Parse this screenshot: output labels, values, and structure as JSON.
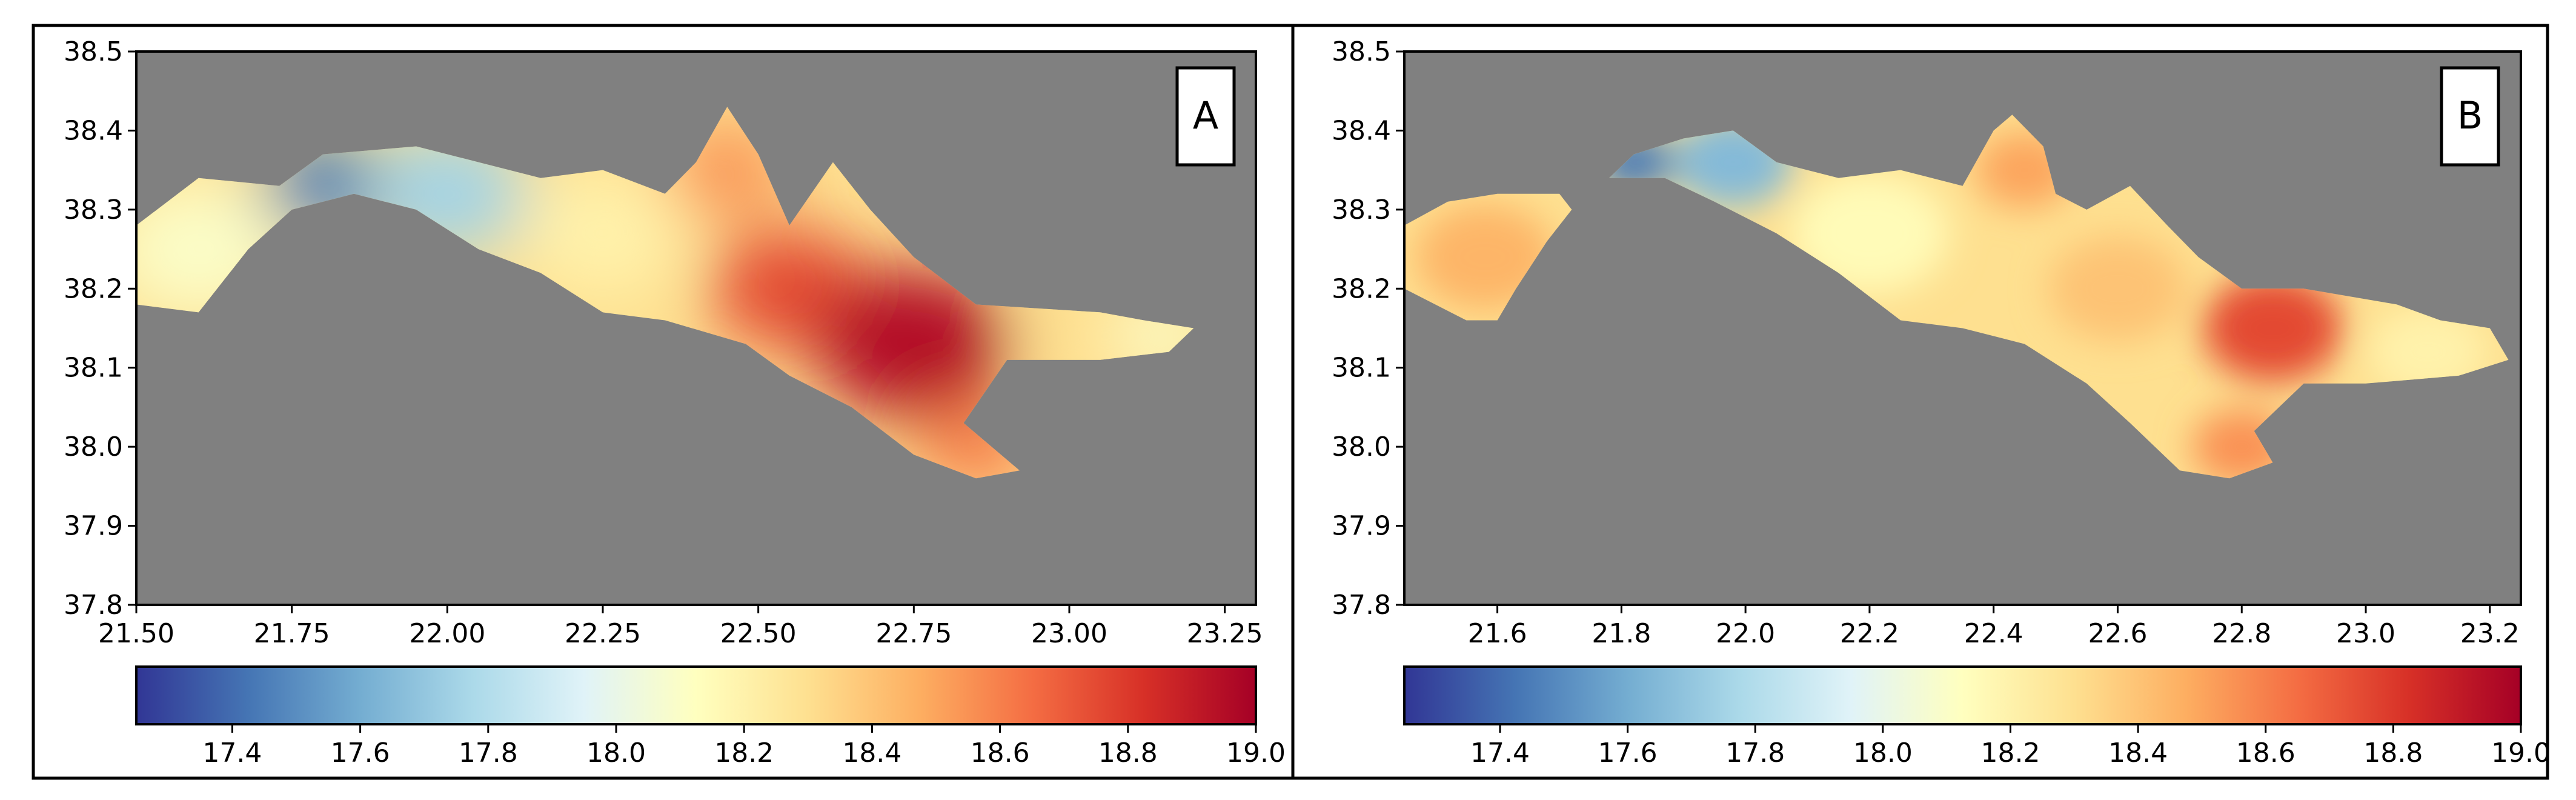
{
  "chart_data": [
    {
      "type": "heatmap",
      "panel_label": "A",
      "title": "",
      "xlabel": "",
      "ylabel": "",
      "xlim": [
        21.5,
        23.3
      ],
      "ylim": [
        37.8,
        38.5
      ],
      "xticks": [
        "21.50",
        "21.75",
        "22.00",
        "22.25",
        "22.50",
        "22.75",
        "23.00",
        "23.25"
      ],
      "xtick_values": [
        21.5,
        21.75,
        22.0,
        22.25,
        22.5,
        22.75,
        23.0,
        23.25
      ],
      "yticks": [
        "38.5",
        "38.4",
        "38.3",
        "38.2",
        "38.1",
        "38.0",
        "37.9",
        "37.8"
      ],
      "ytick_values": [
        38.5,
        38.4,
        38.3,
        38.2,
        38.1,
        38.0,
        37.9,
        37.8
      ],
      "background_color": "#808080",
      "colorbar": {
        "vmin": 17.25,
        "vmax": 19.0,
        "ticks": [
          "17.4",
          "17.6",
          "17.8",
          "18.0",
          "18.2",
          "18.4",
          "18.6",
          "18.8",
          "19.0"
        ],
        "tick_values": [
          17.4,
          17.6,
          17.8,
          18.0,
          18.2,
          18.4,
          18.6,
          18.8,
          19.0
        ],
        "colormap": "RdYlBu_r"
      },
      "region_outline": [
        [
          21.5,
          38.18
        ],
        [
          21.5,
          38.28
        ],
        [
          21.6,
          38.34
        ],
        [
          21.73,
          38.33
        ],
        [
          21.8,
          38.37
        ],
        [
          21.95,
          38.38
        ],
        [
          22.05,
          38.36
        ],
        [
          22.15,
          38.34
        ],
        [
          22.25,
          38.35
        ],
        [
          22.35,
          38.32
        ],
        [
          22.4,
          38.36
        ],
        [
          22.45,
          38.43
        ],
        [
          22.5,
          38.37
        ],
        [
          22.55,
          38.28
        ],
        [
          22.62,
          38.36
        ],
        [
          22.68,
          38.3
        ],
        [
          22.75,
          38.24
        ],
        [
          22.85,
          38.18
        ],
        [
          23.05,
          38.17
        ],
        [
          23.12,
          38.16
        ],
        [
          23.2,
          38.15
        ],
        [
          23.16,
          38.12
        ],
        [
          23.05,
          38.11
        ],
        [
          22.9,
          38.11
        ],
        [
          22.83,
          38.03
        ],
        [
          22.92,
          37.97
        ],
        [
          22.85,
          37.96
        ],
        [
          22.75,
          37.99
        ],
        [
          22.65,
          38.05
        ],
        [
          22.55,
          38.09
        ],
        [
          22.48,
          38.13
        ],
        [
          22.35,
          38.16
        ],
        [
          22.25,
          38.17
        ],
        [
          22.15,
          38.22
        ],
        [
          22.05,
          38.25
        ],
        [
          21.95,
          38.3
        ],
        [
          21.85,
          38.32
        ],
        [
          21.75,
          38.3
        ],
        [
          21.68,
          38.25
        ],
        [
          21.6,
          38.17
        ],
        [
          21.5,
          38.18
        ]
      ],
      "value_fields": [
        {
          "lon": 21.6,
          "lat": 38.25,
          "value": 18.1,
          "spread": 0.09
        },
        {
          "lon": 21.8,
          "lat": 38.33,
          "value": 17.45,
          "spread": 0.06
        },
        {
          "lon": 22.0,
          "lat": 38.32,
          "value": 17.75,
          "spread": 0.08
        },
        {
          "lon": 22.25,
          "lat": 38.27,
          "value": 18.2,
          "spread": 0.08
        },
        {
          "lon": 22.45,
          "lat": 38.35,
          "value": 18.55,
          "spread": 0.06
        },
        {
          "lon": 22.55,
          "lat": 38.2,
          "value": 18.75,
          "spread": 0.08
        },
        {
          "lon": 22.75,
          "lat": 38.13,
          "value": 18.95,
          "spread": 0.1
        },
        {
          "lon": 22.85,
          "lat": 38.0,
          "value": 18.6,
          "spread": 0.06
        },
        {
          "lon": 23.05,
          "lat": 38.14,
          "value": 18.3,
          "spread": 0.08
        },
        {
          "lon": 23.15,
          "lat": 38.14,
          "value": 18.1,
          "spread": 0.05
        }
      ]
    },
    {
      "type": "heatmap",
      "panel_label": "B",
      "title": "",
      "xlabel": "",
      "ylabel": "",
      "xlim": [
        21.45,
        23.25
      ],
      "ylim": [
        37.8,
        38.5
      ],
      "xticks": [
        "21.6",
        "21.8",
        "22.0",
        "22.2",
        "22.4",
        "22.6",
        "22.8",
        "23.0",
        "23.2"
      ],
      "xtick_values": [
        21.6,
        21.8,
        22.0,
        22.2,
        22.4,
        22.6,
        22.8,
        23.0,
        23.2
      ],
      "yticks": [
        "38.5",
        "38.4",
        "38.3",
        "38.2",
        "38.1",
        "38.0",
        "37.9",
        "37.8"
      ],
      "ytick_values": [
        38.5,
        38.4,
        38.3,
        38.2,
        38.1,
        38.0,
        37.9,
        37.8
      ],
      "background_color": "#808080",
      "colorbar": {
        "vmin": 17.25,
        "vmax": 19.0,
        "ticks": [
          "17.4",
          "17.6",
          "17.8",
          "18.0",
          "18.2",
          "18.4",
          "18.6",
          "18.8",
          "19.0"
        ],
        "tick_values": [
          17.4,
          17.6,
          17.8,
          18.0,
          18.2,
          18.4,
          18.6,
          18.8,
          19.0
        ],
        "colormap": "RdYlBu_r"
      },
      "region_outline": [
        [
          21.45,
          38.2
        ],
        [
          21.45,
          38.28
        ],
        [
          21.52,
          38.31
        ],
        [
          21.6,
          38.32
        ],
        [
          21.7,
          38.32
        ],
        [
          21.72,
          38.3
        ],
        [
          21.68,
          38.26
        ],
        [
          21.63,
          38.2
        ],
        [
          21.6,
          38.16
        ],
        [
          21.55,
          38.16
        ],
        [
          21.5,
          38.18
        ],
        [
          21.45,
          38.2
        ]
      ],
      "region_outline_2": [
        [
          21.78,
          38.34
        ],
        [
          21.82,
          38.37
        ],
        [
          21.9,
          38.39
        ],
        [
          21.98,
          38.4
        ],
        [
          22.05,
          38.36
        ],
        [
          22.15,
          38.34
        ],
        [
          22.25,
          38.35
        ],
        [
          22.35,
          38.33
        ],
        [
          22.4,
          38.4
        ],
        [
          22.43,
          38.42
        ],
        [
          22.48,
          38.38
        ],
        [
          22.5,
          38.32
        ],
        [
          22.55,
          38.3
        ],
        [
          22.62,
          38.33
        ],
        [
          22.68,
          38.28
        ],
        [
          22.73,
          38.24
        ],
        [
          22.8,
          38.2
        ],
        [
          22.9,
          38.2
        ],
        [
          23.05,
          38.18
        ],
        [
          23.12,
          38.16
        ],
        [
          23.2,
          38.15
        ],
        [
          23.23,
          38.11
        ],
        [
          23.15,
          38.09
        ],
        [
          23.0,
          38.08
        ],
        [
          22.9,
          38.08
        ],
        [
          22.82,
          38.02
        ],
        [
          22.85,
          37.98
        ],
        [
          22.78,
          37.96
        ],
        [
          22.7,
          37.97
        ],
        [
          22.62,
          38.03
        ],
        [
          22.55,
          38.08
        ],
        [
          22.45,
          38.13
        ],
        [
          22.35,
          38.15
        ],
        [
          22.25,
          38.16
        ],
        [
          22.15,
          38.22
        ],
        [
          22.05,
          38.27
        ],
        [
          21.95,
          38.31
        ],
        [
          21.87,
          38.34
        ],
        [
          21.78,
          38.34
        ]
      ],
      "value_fields": [
        {
          "lon": 21.58,
          "lat": 38.24,
          "value": 18.45,
          "spread": 0.07
        },
        {
          "lon": 21.82,
          "lat": 38.36,
          "value": 17.45,
          "spread": 0.04
        },
        {
          "lon": 21.98,
          "lat": 38.36,
          "value": 17.65,
          "spread": 0.06
        },
        {
          "lon": 22.2,
          "lat": 38.27,
          "value": 18.15,
          "spread": 0.08
        },
        {
          "lon": 22.45,
          "lat": 38.35,
          "value": 18.5,
          "spread": 0.05
        },
        {
          "lon": 22.6,
          "lat": 38.2,
          "value": 18.4,
          "spread": 0.07
        },
        {
          "lon": 22.85,
          "lat": 38.15,
          "value": 18.75,
          "spread": 0.07
        },
        {
          "lon": 22.8,
          "lat": 38.0,
          "value": 18.55,
          "spread": 0.05
        },
        {
          "lon": 23.1,
          "lat": 38.12,
          "value": 18.2,
          "spread": 0.06
        }
      ]
    }
  ]
}
